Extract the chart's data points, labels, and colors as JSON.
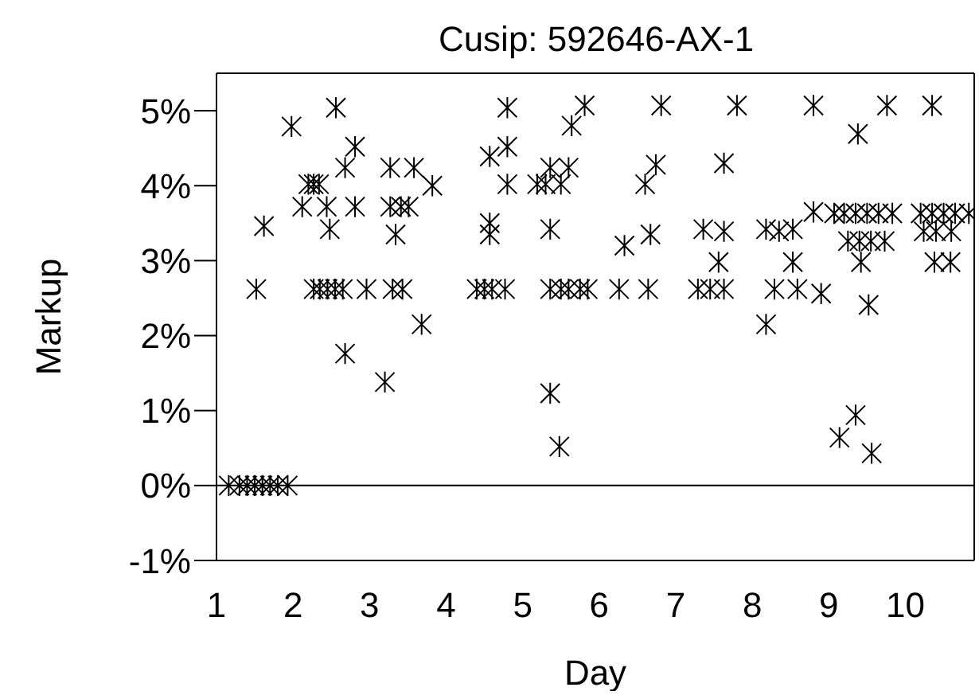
{
  "chart_data": {
    "type": "scatter",
    "title": "Cusip: 592646-AX-1",
    "xlabel": "Day",
    "ylabel": "Markup",
    "xlim": [
      1,
      10.9
    ],
    "xticks": [
      1,
      2,
      3,
      4,
      5,
      6,
      7,
      8,
      9,
      10
    ],
    "ylim": [
      -1,
      5.5
    ],
    "yticks": [
      {
        "value": -1,
        "label": "-1%"
      },
      {
        "value": 0,
        "label": "0%"
      },
      {
        "value": 1,
        "label": "1%"
      },
      {
        "value": 2,
        "label": "2%"
      },
      {
        "value": 3,
        "label": "3%"
      },
      {
        "value": 4,
        "label": "4%"
      },
      {
        "value": 5,
        "label": "5%"
      }
    ],
    "grid": false,
    "marker": "cross",
    "ref_lines": [
      {
        "axis": "y",
        "value": 0,
        "color": "#000000"
      }
    ],
    "series": [
      {
        "color": "#000000",
        "x": [
          1.16,
          1.3,
          1.4,
          1.5,
          1.6,
          1.7,
          1.8,
          1.93,
          1.62,
          1.52,
          1.98,
          2.56,
          2.81,
          2.68,
          2.2,
          2.27,
          2.34,
          2.12,
          2.44,
          2.81,
          2.48,
          2.27,
          2.35,
          2.45,
          2.55,
          2.65,
          2.96,
          3.3,
          3.43,
          3.27,
          3.58,
          3.82,
          3.27,
          3.41,
          3.51,
          3.34,
          3.68,
          2.68,
          3.2,
          4.57,
          4.8,
          4.8,
          4.8,
          5.19,
          5.5,
          5.3,
          5.36,
          5.6,
          5.64,
          4.57,
          4.57,
          5.36,
          4.4,
          4.5,
          4.6,
          4.77,
          5.36,
          5.5,
          5.6,
          5.75,
          5.85,
          5.36,
          5.48,
          5.81,
          6.81,
          7.8,
          8.8,
          9.76,
          10.35,
          9.38,
          6.74,
          6.6,
          7.63,
          6.33,
          6.67,
          7.36,
          7.63,
          7.56,
          8.18,
          8.35,
          8.53,
          8.53,
          8.8,
          9.07,
          9.2,
          9.35,
          9.5,
          9.65,
          9.83,
          9.25,
          9.4,
          9.55,
          9.73,
          9.42,
          10.2,
          10.35,
          10.5,
          10.65,
          10.83,
          10.24,
          10.4,
          10.6,
          10.38,
          10.59,
          6.26,
          6.64,
          7.29,
          7.45,
          7.63,
          8.29,
          8.59,
          8.9,
          9.52,
          8.18,
          9.35,
          9.14,
          9.56
        ],
        "values": [
          0,
          0,
          0,
          0,
          0,
          0,
          0,
          0,
          3.46,
          2.62,
          4.79,
          5.04,
          4.52,
          4.24,
          4.02,
          4.02,
          4.02,
          3.72,
          3.72,
          3.72,
          3.42,
          2.62,
          2.62,
          2.62,
          2.62,
          2.62,
          2.62,
          2.62,
          2.62,
          4.24,
          4.24,
          4.0,
          3.72,
          3.72,
          3.72,
          3.35,
          2.15,
          1.76,
          1.38,
          4.39,
          4.52,
          5.04,
          4.02,
          4.02,
          4.02,
          4.02,
          4.24,
          4.24,
          4.8,
          3.5,
          3.35,
          3.42,
          2.62,
          2.62,
          2.62,
          2.62,
          2.62,
          2.62,
          2.62,
          2.62,
          2.62,
          1.23,
          0.52,
          5.07,
          5.07,
          5.07,
          5.07,
          5.07,
          5.07,
          4.69,
          4.28,
          4.02,
          4.3,
          3.2,
          3.35,
          3.42,
          3.39,
          2.98,
          3.42,
          3.39,
          3.42,
          2.98,
          3.65,
          3.63,
          3.63,
          3.63,
          3.63,
          3.63,
          3.63,
          3.26,
          3.26,
          3.26,
          3.26,
          2.98,
          3.63,
          3.63,
          3.63,
          3.63,
          3.63,
          3.39,
          3.39,
          3.39,
          2.98,
          2.98,
          2.62,
          2.62,
          2.62,
          2.62,
          2.62,
          2.62,
          2.62,
          2.56,
          2.41,
          2.15,
          0.94,
          0.64,
          0.43
        ]
      }
    ]
  }
}
